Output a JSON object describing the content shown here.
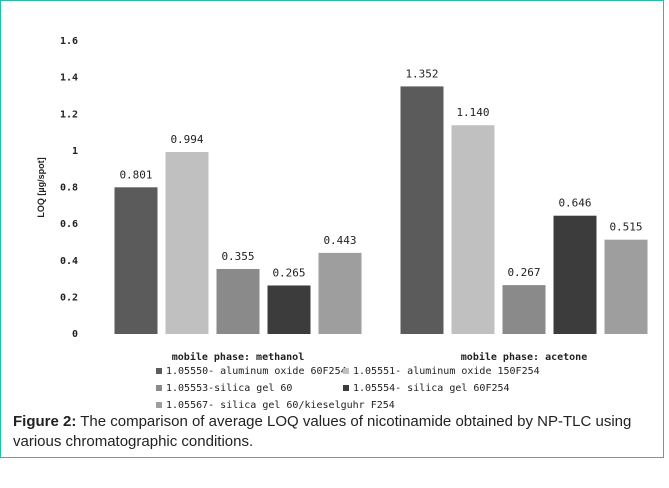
{
  "chart_data": {
    "type": "bar",
    "ylabel": "LOQ [µg/spot]",
    "ylim": [
      0,
      1.6
    ],
    "yticks": [
      "0",
      "0.2",
      "0.4",
      "0.6",
      "0.8",
      "1",
      "1.2",
      "1.4",
      "1.6"
    ],
    "categories": [
      "mobile phase: methanol",
      "mobile phase: acetone"
    ],
    "series": [
      {
        "name": "1.05550- aluminum oxide 60F254",
        "values": [
          0.801,
          1.352
        ],
        "labels": [
          "0.801",
          "1.352"
        ],
        "color": "#5b5b5b"
      },
      {
        "name": "1.05551- aluminum oxide 150F254",
        "values": [
          0.994,
          1.14
        ],
        "labels": [
          "0.994",
          "1.140"
        ],
        "color": "#c0c0c0"
      },
      {
        "name": "1.05553-silica gel 60",
        "values": [
          0.355,
          0.267
        ],
        "labels": [
          "0.355",
          "0.267"
        ],
        "color": "#8a8a8a"
      },
      {
        "name": "1.05554- silica gel 60F254",
        "values": [
          0.265,
          0.646
        ],
        "labels": [
          "0.265",
          "0.646"
        ],
        "color": "#3c3c3c"
      },
      {
        "name": "1.05567- silica gel  60/kieselguhr F254",
        "values": [
          0.443,
          0.515
        ],
        "labels": [
          "0.443",
          "0.515"
        ],
        "color": "#9e9e9e"
      }
    ],
    "legend_position": "bottom",
    "grid": false
  },
  "caption": {
    "label": "Figure 2:",
    "text": " The comparison of average LOQ values of nicotinamide obtained by NP-TLC using various chromatographic conditions."
  }
}
